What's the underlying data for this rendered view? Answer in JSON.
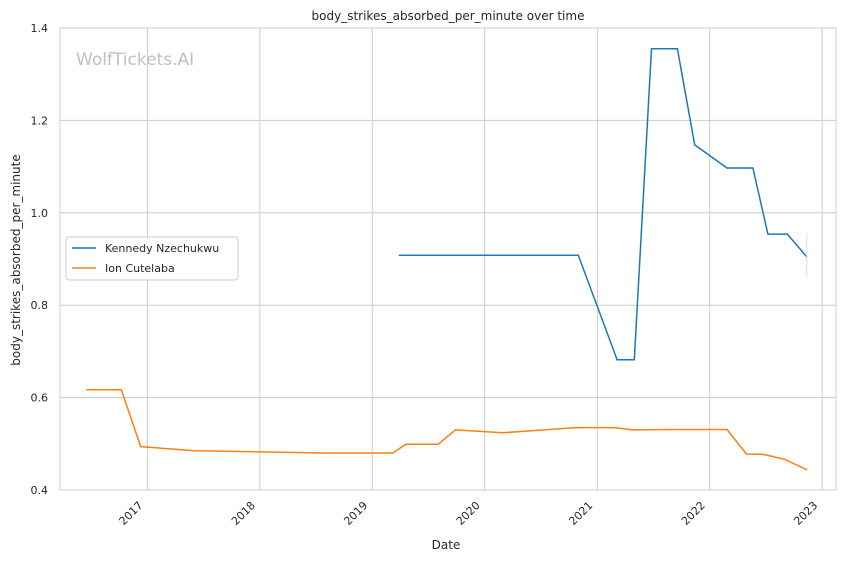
{
  "watermark": "WolfTickets.AI",
  "chart_data": {
    "type": "line",
    "title": "body_strikes_absorbed_per_minute over time",
    "xlabel": "Date",
    "ylabel": "body_strikes_absorbed_per_minute",
    "ylim": [
      0.4,
      1.4
    ],
    "xlim": [
      "2016-03-23",
      "2023-02-15"
    ],
    "grid": true,
    "legend_position": "center-left",
    "y_ticks": [
      "0.4",
      "0.6",
      "0.8",
      "1.0",
      "1.2",
      "1.4"
    ],
    "x_ticks": [
      "2017",
      "2018",
      "2019",
      "2020",
      "2021",
      "2022",
      "2023"
    ],
    "series": [
      {
        "name": "Kennedy Nzechukwu",
        "color": "#1f77b4",
        "points": [
          [
            "2019-03-30",
            0.908
          ],
          [
            "2020-10-31",
            0.908
          ],
          [
            "2021-03-06",
            0.682
          ],
          [
            "2021-05-01",
            0.682
          ],
          [
            "2021-06-26",
            1.355
          ],
          [
            "2021-09-18",
            1.355
          ],
          [
            "2021-11-13",
            1.147
          ],
          [
            "2022-02-26",
            1.097
          ],
          [
            "2022-05-21",
            1.097
          ],
          [
            "2022-07-09",
            0.954
          ],
          [
            "2022-09-10",
            0.954
          ],
          [
            "2022-11-12",
            0.905
          ]
        ],
        "error_bar": {
          "x": "2022-11-12",
          "low": 0.86,
          "high": 0.955
        }
      },
      {
        "name": "Ion Cutelaba",
        "color": "#ff7f0e",
        "points": [
          [
            "2016-06-18",
            0.617
          ],
          [
            "2016-10-08",
            0.617
          ],
          [
            "2016-12-10",
            0.494
          ],
          [
            "2017-06-03",
            0.485
          ],
          [
            "2018-07-28",
            0.48
          ],
          [
            "2019-03-09",
            0.48
          ],
          [
            "2019-04-20",
            0.499
          ],
          [
            "2019-08-03",
            0.499
          ],
          [
            "2019-09-28",
            0.53
          ],
          [
            "2020-02-29",
            0.524
          ],
          [
            "2020-10-24",
            0.535
          ],
          [
            "2021-02-27",
            0.535
          ],
          [
            "2021-04-24",
            0.53
          ],
          [
            "2021-08-28",
            0.531
          ],
          [
            "2022-02-26",
            0.531
          ],
          [
            "2022-04-30",
            0.478
          ],
          [
            "2022-06-25",
            0.477
          ],
          [
            "2022-09-03",
            0.466
          ],
          [
            "2022-11-12",
            0.444
          ]
        ]
      }
    ]
  }
}
